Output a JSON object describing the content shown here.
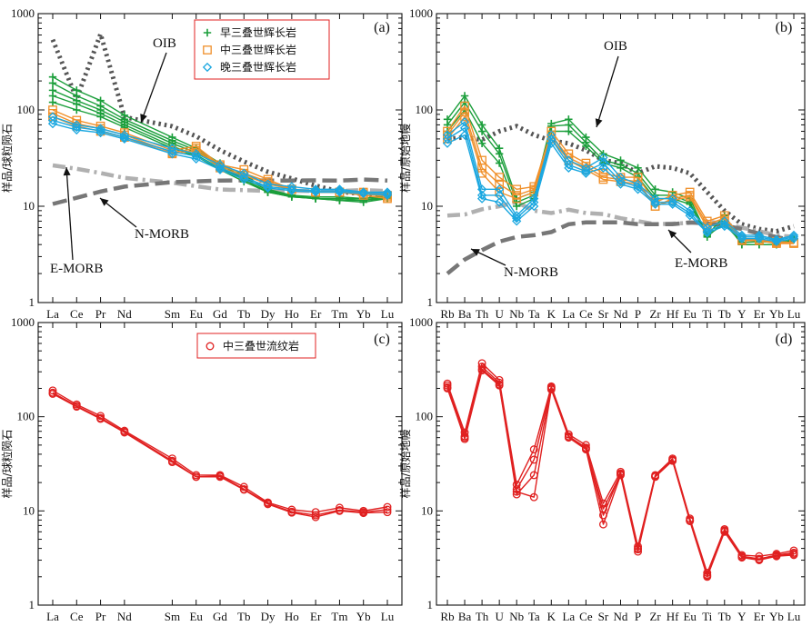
{
  "chart_data": [
    {
      "type": "line",
      "panel_label": "(a)",
      "ylabel": "样品/球粒陨石",
      "yscale": "log",
      "ylim": [
        1,
        1000
      ],
      "y_ticks": [
        "1",
        "10",
        "100",
        "1000"
      ],
      "x": [
        "La",
        "Ce",
        "Pr",
        "Nd",
        "Sm",
        "Eu",
        "Gd",
        "Tb",
        "Dy",
        "Ho",
        "Er",
        "Tm",
        "Yb",
        "Lu"
      ],
      "x_positions": [
        0,
        1,
        2,
        3,
        5,
        6,
        7,
        8,
        9,
        10,
        11,
        12,
        13,
        14
      ],
      "legend": {
        "placement": "top-center",
        "items": [
          {
            "label": "早三叠世辉长岩",
            "color": "#1a9e3a",
            "marker": "plus"
          },
          {
            "label": "中三叠世辉长岩",
            "color": "#f0902a",
            "marker": "square"
          },
          {
            "label": "晚三叠世辉长岩",
            "color": "#1aa7e0",
            "marker": "diamond"
          }
        ]
      },
      "annotations": [
        "OIB",
        "E-MORB",
        "N-MORB"
      ],
      "reference": [
        {
          "name": "OIB",
          "color": "#555555",
          "style": "dotted",
          "values": [
            127,
            80,
            57,
            38.5,
            10,
            3,
            7.6,
            1.05,
            5.6,
            1.06,
            2.62,
            0.35,
            2.16,
            0.3
          ]
        },
        {
          "name": "E-MORB",
          "color": "#b0b0b0",
          "style": "dashdot",
          "values": [
            6.3,
            15,
            2.05,
            9,
            2.6,
            0.91,
            2.97,
            0.53,
            3.55,
            0.79,
            2.31,
            0.356,
            2.37,
            0.354
          ]
        },
        {
          "name": "N-MORB",
          "color": "#777777",
          "style": "dashed",
          "values": [
            2.5,
            7.5,
            1.32,
            7.3,
            2.63,
            1.02,
            3.68,
            0.67,
            4.55,
            1.01,
            2.97,
            0.456,
            3.05,
            0.455
          ]
        }
      ],
      "normalizer": [
        0.237,
        0.613,
        0.0928,
        0.457,
        0.148,
        0.0563,
        0.199,
        0.0361,
        0.246,
        0.0546,
        0.16,
        0.0247,
        0.161,
        0.0246
      ],
      "series": [
        {
          "group": "早三叠世辉长岩",
          "color": "#1a9e3a",
          "marker": "plus",
          "values": [
            220,
            160,
            125,
            88,
            52,
            40,
            28,
            21,
            15,
            13,
            12,
            11.5,
            11,
            12
          ]
        },
        {
          "group": "早三叠世辉长岩",
          "color": "#1a9e3a",
          "marker": "plus",
          "values": [
            190,
            140,
            110,
            80,
            48,
            38,
            27,
            20,
            14.5,
            13,
            12,
            11.5,
            11.5,
            12
          ]
        },
        {
          "group": "早三叠世辉长岩",
          "color": "#1a9e3a",
          "marker": "plus",
          "values": [
            160,
            125,
            100,
            75,
            45,
            36,
            26,
            19,
            14,
            12.5,
            12,
            12,
            12,
            12.5
          ]
        },
        {
          "group": "早三叠世辉长岩",
          "color": "#1a9e3a",
          "marker": "plus",
          "values": [
            140,
            115,
            92,
            70,
            42,
            34,
            25,
            19,
            14,
            12.5,
            12,
            12,
            11.5,
            12.5
          ]
        },
        {
          "group": "早三叠世辉长岩",
          "color": "#1a9e3a",
          "marker": "plus",
          "values": [
            120,
            100,
            85,
            66,
            40,
            33,
            24,
            18,
            14,
            13,
            12.5,
            12.5,
            12,
            13
          ]
        },
        {
          "group": "中三叠世辉长岩",
          "color": "#f0902a",
          "marker": "square",
          "values": [
            100,
            78,
            68,
            58,
            38,
            42,
            27,
            24,
            19,
            15,
            14,
            14,
            13,
            12
          ]
        },
        {
          "group": "中三叠世辉长岩",
          "color": "#f0902a",
          "marker": "square",
          "values": [
            92,
            72,
            64,
            55,
            36,
            40,
            26,
            22,
            18,
            15,
            14,
            14,
            13.5,
            12.5
          ]
        },
        {
          "group": "中三叠世辉长岩",
          "color": "#f0902a",
          "marker": "square",
          "values": [
            85,
            68,
            60,
            52,
            35,
            38,
            25,
            21,
            17,
            15,
            14,
            14,
            14,
            13
          ]
        },
        {
          "group": "晚三叠世辉长岩",
          "color": "#1aa7e0",
          "marker": "diamond",
          "values": [
            85,
            70,
            64,
            55,
            40,
            35,
            27,
            22,
            17,
            16,
            15,
            15,
            14,
            14
          ]
        },
        {
          "group": "晚三叠世辉长岩",
          "color": "#1aa7e0",
          "marker": "diamond",
          "values": [
            78,
            66,
            61,
            52,
            37,
            33,
            25,
            20,
            16,
            15,
            14.5,
            14.5,
            14,
            13.5
          ]
        },
        {
          "group": "晚三叠世辉长岩",
          "color": "#1aa7e0",
          "marker": "diamond",
          "values": [
            72,
            62,
            58,
            50,
            35,
            31,
            24,
            19,
            15.5,
            14.5,
            14,
            14,
            13.5,
            13
          ]
        }
      ]
    },
    {
      "type": "line",
      "panel_label": "(b)",
      "ylabel": "样品/原始地幔",
      "yscale": "log",
      "ylim": [
        1,
        1000
      ],
      "y_ticks": [
        "1",
        "10",
        "100",
        "1000"
      ],
      "x": [
        "Rb",
        "Ba",
        "Th",
        "U",
        "Nb",
        "Ta",
        "K",
        "La",
        "Ce",
        "Sr",
        "Nd",
        "P",
        "Zr",
        "Hf",
        "Eu",
        "Ti",
        "Tb",
        "Y",
        "Er",
        "Yb",
        "Lu"
      ],
      "x_positions": [
        0,
        1,
        2,
        3,
        4,
        5,
        6,
        7,
        8,
        9,
        10,
        11,
        12,
        13,
        14,
        15,
        16,
        17,
        18,
        19,
        20
      ],
      "annotations": [
        "OIB",
        "E-MORB",
        "N-MORB"
      ],
      "reference": [
        {
          "name": "OIB",
          "color": "#555555",
          "style": "dotted",
          "values": [
            50,
            52,
            49,
            60,
            68,
            55,
            48,
            45,
            38,
            30,
            28,
            22,
            26,
            25,
            22,
            14,
            9,
            6.5,
            5.8,
            5.5,
            6.2
          ]
        },
        {
          "name": "E-MORB",
          "color": "#b0b0b0",
          "style": "dashdot",
          "values": [
            8,
            8.2,
            9.3,
            10,
            11,
            9,
            8.5,
            9.2,
            8.5,
            8.3,
            7.5,
            7,
            6.5,
            6.6,
            6.7,
            7,
            6.5,
            6,
            5.5,
            5,
            4.8
          ]
        },
        {
          "name": "N-MORB",
          "color": "#777777",
          "style": "dashed",
          "values": [
            2,
            2.8,
            3.5,
            4.3,
            4.8,
            5,
            5.4,
            6.5,
            6.8,
            6.8,
            6.8,
            6.5,
            6.5,
            6.5,
            6.8,
            6.6,
            6.3,
            5.8,
            5.2,
            4.8,
            4.4
          ]
        }
      ],
      "series": [
        {
          "group": "早三叠世辉长岩",
          "color": "#1a9e3a",
          "marker": "plus",
          "values": [
            80,
            140,
            70,
            40,
            12,
            14,
            72,
            80,
            52,
            35,
            30,
            25,
            15,
            14,
            12,
            5,
            8,
            4,
            4,
            4,
            4.5
          ]
        },
        {
          "group": "早三叠世辉长岩",
          "color": "#1a9e3a",
          "marker": "plus",
          "values": [
            70,
            120,
            60,
            35,
            11,
            13,
            68,
            70,
            46,
            30,
            27,
            22,
            13,
            13,
            11,
            4.8,
            7,
            4,
            4,
            4,
            4.5
          ]
        },
        {
          "group": "早三叠世辉长岩",
          "color": "#1a9e3a",
          "marker": "plus",
          "values": [
            60,
            100,
            45,
            28,
            10,
            12,
            60,
            60,
            42,
            28,
            25,
            20,
            12,
            12,
            10.5,
            5,
            6.5,
            4.2,
            4.3,
            4.2,
            4.6
          ]
        },
        {
          "group": "中三叠世辉长岩",
          "color": "#f0902a",
          "marker": "square",
          "values": [
            60,
            110,
            30,
            20,
            15,
            16,
            60,
            35,
            28,
            22,
            20,
            20,
            11,
            13,
            14,
            7,
            8,
            4.5,
            4.5,
            4.3,
            4.2
          ]
        },
        {
          "group": "中三叠世辉长岩",
          "color": "#f0902a",
          "marker": "square",
          "values": [
            55,
            95,
            25,
            17,
            13,
            15,
            55,
            32,
            26,
            20,
            19,
            18,
            10,
            12,
            13,
            6.5,
            7.5,
            4.5,
            4.5,
            4.2,
            4.2
          ]
        },
        {
          "group": "中三叠世辉长岩",
          "color": "#f0902a",
          "marker": "square",
          "values": [
            50,
            85,
            22,
            14,
            12,
            14,
            50,
            30,
            24,
            19,
            18,
            17,
            10,
            11.5,
            12.5,
            6,
            7,
            4.4,
            4.4,
            4.1,
            4.1
          ]
        },
        {
          "group": "晚三叠世辉长岩",
          "color": "#1aa7e0",
          "marker": "diamond",
          "values": [
            55,
            75,
            15,
            15,
            8,
            12,
            55,
            30,
            25,
            32,
            20,
            17,
            12,
            12,
            9,
            6,
            7,
            5,
            5,
            4.5,
            5
          ]
        },
        {
          "group": "晚三叠世辉长岩",
          "color": "#1aa7e0",
          "marker": "diamond",
          "values": [
            50,
            65,
            13,
            13,
            7.5,
            11,
            50,
            27,
            23,
            28,
            18,
            16,
            11,
            11,
            8.5,
            5.5,
            6.5,
            4.8,
            4.8,
            4.4,
            4.8
          ]
        },
        {
          "group": "晚三叠世辉长岩",
          "color": "#1aa7e0",
          "marker": "diamond",
          "values": [
            45,
            55,
            12,
            11,
            7,
            10,
            45,
            25,
            22,
            25,
            17,
            15,
            10.5,
            10.5,
            8,
            5.3,
            6.2,
            4.6,
            4.6,
            4.3,
            4.6
          ]
        }
      ]
    },
    {
      "type": "line",
      "panel_label": "(c)",
      "ylabel": "样品/球粒陨石",
      "yscale": "log",
      "ylim": [
        1,
        1000
      ],
      "y_ticks": [
        "1",
        "10",
        "100",
        "1000"
      ],
      "x": [
        "La",
        "Ce",
        "Pr",
        "Nd",
        "Sm",
        "Eu",
        "Gd",
        "Tb",
        "Dy",
        "Ho",
        "Er",
        "Tm",
        "Yb",
        "Lu"
      ],
      "x_positions": [
        0,
        1,
        2,
        3,
        5,
        6,
        7,
        8,
        9,
        10,
        11,
        12,
        13,
        14
      ],
      "legend": {
        "placement": "top-center",
        "items": [
          {
            "label": "中三叠世流纹岩",
            "color": "#e02020",
            "marker": "circle"
          }
        ]
      },
      "series": [
        {
          "group": "中三叠世流纹岩",
          "color": "#e02020",
          "marker": "circle",
          "values": [
            190,
            135,
            102,
            71,
            36,
            24,
            24,
            18,
            12.3,
            10.3,
            9.7,
            10.8,
            10,
            11
          ]
        },
        {
          "group": "中三叠世流纹岩",
          "color": "#e02020",
          "marker": "circle",
          "values": [
            180,
            130,
            97,
            69,
            34,
            23,
            23.5,
            17,
            12,
            9.8,
            9,
            10.2,
            9.7,
            10.3
          ]
        },
        {
          "group": "中三叠世流纹岩",
          "color": "#e02020",
          "marker": "circle",
          "values": [
            175,
            128,
            95,
            68,
            33,
            23,
            23,
            16.8,
            11.8,
            9.6,
            8.6,
            10,
            9.5,
            9.7
          ]
        }
      ]
    },
    {
      "type": "line",
      "panel_label": "(d)",
      "ylabel": "样品/原始地幔",
      "yscale": "log",
      "ylim": [
        1,
        1000
      ],
      "y_ticks": [
        "1",
        "10",
        "100",
        "1000"
      ],
      "x": [
        "Rb",
        "Ba",
        "Th",
        "U",
        "Nb",
        "Ta",
        "K",
        "La",
        "Ce",
        "Sr",
        "Nd",
        "P",
        "Zr",
        "Hf",
        "Eu",
        "Ti",
        "Tb",
        "Y",
        "Er",
        "Yb",
        "Lu"
      ],
      "x_positions": [
        0,
        1,
        2,
        3,
        4,
        5,
        6,
        7,
        8,
        9,
        10,
        11,
        12,
        13,
        14,
        15,
        16,
        17,
        18,
        19,
        20
      ],
      "series": [
        {
          "group": "中三叠世流纹岩",
          "color": "#e02020",
          "marker": "circle",
          "values": [
            225,
            68,
            370,
            245,
            19,
            45,
            210,
            65,
            50,
            12,
            26,
            4.2,
            24,
            36,
            8.3,
            2.2,
            6.4,
            3.4,
            3.3,
            3.5,
            3.8
          ]
        },
        {
          "group": "中三叠世流纹岩",
          "color": "#e02020",
          "marker": "circle",
          "values": [
            215,
            62,
            340,
            230,
            17,
            35,
            205,
            62,
            47,
            9,
            25,
            4,
            23.5,
            35,
            8,
            2.1,
            6.2,
            3.3,
            3.1,
            3.4,
            3.6
          ]
        },
        {
          "group": "中三叠世流纹岩",
          "color": "#e02020",
          "marker": "circle",
          "values": [
            205,
            58,
            310,
            215,
            15,
            24,
            200,
            60,
            45,
            7.2,
            24,
            3.7,
            23,
            34,
            7.8,
            2,
            6,
            3.2,
            3,
            3.3,
            3.4
          ]
        },
        {
          "group": "中三叠世流纹岩",
          "color": "#e02020",
          "marker": "circle",
          "values": [
            200,
            60,
            320,
            220,
            16,
            14,
            195,
            61,
            46,
            10.5,
            24.5,
            3.9,
            23.2,
            34.5,
            7.9,
            2.05,
            6.1,
            3.25,
            3.05,
            3.35,
            3.5
          ]
        }
      ]
    }
  ]
}
